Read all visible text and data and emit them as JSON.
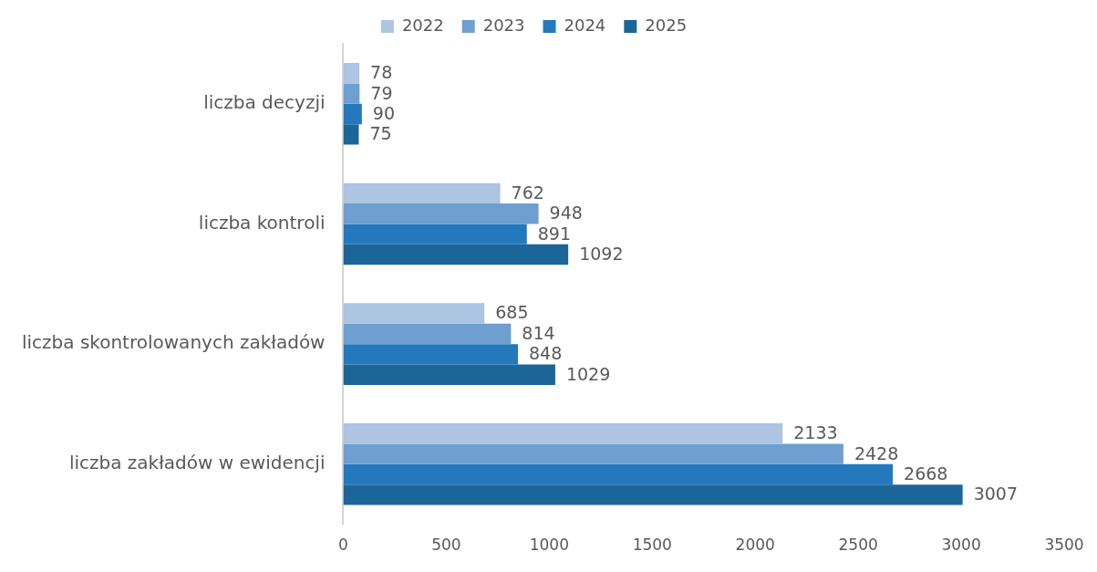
{
  "chart_data": {
    "type": "bar",
    "orientation": "horizontal",
    "categories": [
      "liczba decyzji",
      "liczba kontroli",
      "liczba skontrolowanych zakładów",
      "liczba zakładów w ewidencji"
    ],
    "series": [
      {
        "name": "2022",
        "color": "#adc4e2",
        "values": [
          78,
          762,
          685,
          2133
        ]
      },
      {
        "name": "2023",
        "color": "#6e9fd0",
        "values": [
          79,
          948,
          814,
          2428
        ]
      },
      {
        "name": "2024",
        "color": "#2479bd",
        "values": [
          90,
          891,
          848,
          2668
        ]
      },
      {
        "name": "2025",
        "color": "#1c6599",
        "values": [
          75,
          1092,
          1029,
          3007
        ]
      }
    ],
    "xlim": [
      0,
      3500
    ],
    "xticks": [
      0,
      500,
      1000,
      1500,
      2000,
      2500,
      3000,
      3500
    ],
    "grid": false,
    "legend": "top",
    "data_labels": true
  }
}
